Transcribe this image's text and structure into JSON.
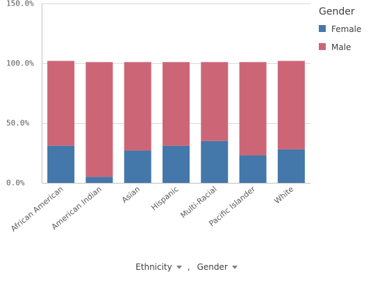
{
  "chart_data": {
    "type": "bar",
    "stacked": true,
    "categories": [
      "African American",
      "American Indian",
      "Asian",
      "Hispanic",
      "Multi-Racial",
      "Pacific Islander",
      "White"
    ],
    "series": [
      {
        "name": "Female",
        "color": "#4477aa",
        "values": [
          31,
          5,
          27,
          31,
          35,
          23,
          28
        ]
      },
      {
        "name": "Male",
        "color": "#cc6677",
        "values": [
          71,
          96,
          74,
          70,
          66,
          78,
          74
        ]
      }
    ],
    "yticks": [
      "0.0%",
      "50.0%",
      "100.0%",
      "150.0%"
    ],
    "ylim": [
      0,
      150
    ],
    "legend": {
      "title": "Gender",
      "position": "right"
    }
  },
  "dimensions": [
    {
      "label": "Ethnicity",
      "icon": "caret-down-icon"
    },
    {
      "label": "Gender",
      "icon": "caret-down-icon"
    }
  ],
  "dimension_separator": ","
}
